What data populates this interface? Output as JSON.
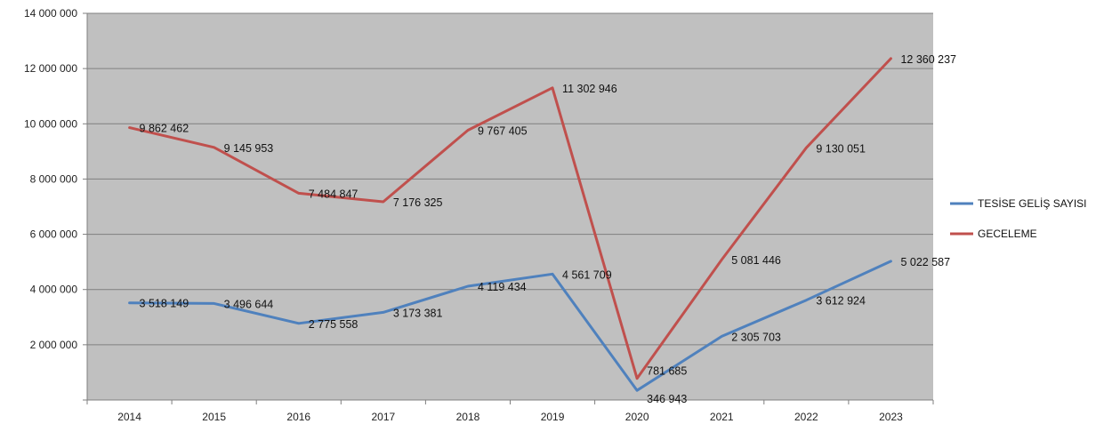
{
  "chart_data": {
    "type": "line",
    "title": "",
    "xlabel": "",
    "ylabel": "",
    "ylim": [
      0,
      14000000
    ],
    "y_ticks": [
      {
        "value": 2000000,
        "label": "2 000 000"
      },
      {
        "value": 4000000,
        "label": "4 000 000"
      },
      {
        "value": 6000000,
        "label": "6 000 000"
      },
      {
        "value": 8000000,
        "label": "8 000 000"
      },
      {
        "value": 10000000,
        "label": "10 000 000"
      },
      {
        "value": 12000000,
        "label": "12 000 000"
      },
      {
        "value": 14000000,
        "label": "14 000 000"
      }
    ],
    "categories": [
      "2014",
      "2015",
      "2016",
      "2017",
      "2018",
      "2019",
      "2020",
      "2021",
      "2022",
      "2023"
    ],
    "grid": true,
    "plot_background": "#c0c0c0",
    "legend_position": "right",
    "series": [
      {
        "name": "TESİSE GELİŞ SAYISI",
        "color": "#4f81bd",
        "values": [
          3518149,
          3496644,
          2775558,
          3173381,
          4119434,
          4561709,
          346943,
          2305703,
          3612924,
          5022587
        ],
        "labels": [
          "3 518 149",
          "3 496 644",
          "2 775 558",
          "3 173 381",
          "4 119 434",
          "4 561 709",
          "346 943",
          "2 305 703",
          "3 612 924",
          "5 022 587"
        ]
      },
      {
        "name": "GECELEME",
        "color": "#c0504d",
        "values": [
          9862462,
          9145953,
          7484847,
          7176325,
          9767405,
          11302946,
          781685,
          5081446,
          9130051,
          12360237
        ],
        "labels": [
          "9 862 462",
          "9 145 953",
          "7 484 847",
          "7 176 325",
          "9 767 405",
          "11 302 946",
          "781 685",
          "5 081 446",
          "9 130 051",
          "12 360 237"
        ]
      }
    ]
  }
}
